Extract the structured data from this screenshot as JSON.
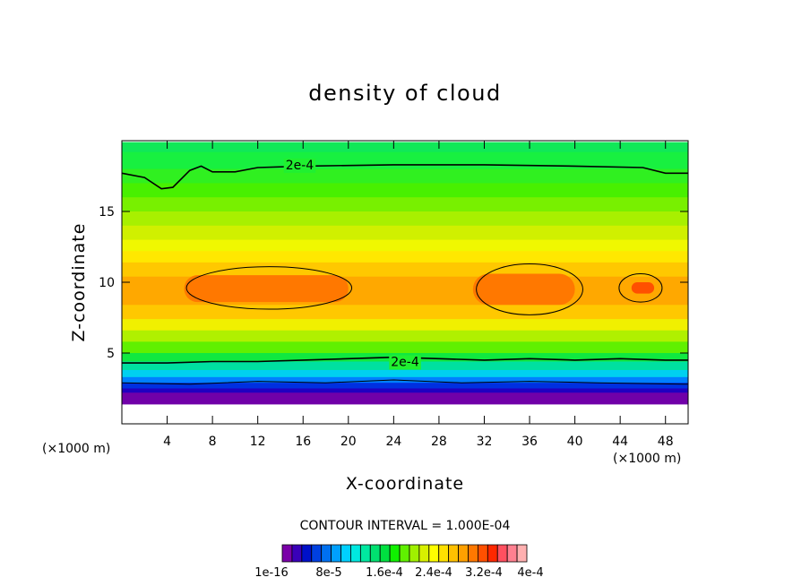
{
  "chart_data": {
    "type": "heatmap",
    "title": "density of cloud",
    "xlabel": "X-coordinate",
    "ylabel": "Z-coordinate",
    "x_unit_label": "(×1000 m)",
    "y_unit_label": "(×1000 m)",
    "xlim": [
      0,
      50
    ],
    "ylim": [
      0,
      20
    ],
    "x_ticks": [
      4,
      8,
      12,
      16,
      20,
      24,
      28,
      32,
      36,
      40,
      44,
      48
    ],
    "y_ticks": [
      5,
      10,
      15
    ],
    "contour_interval_text": "CONTOUR INTERVAL = 1.000E-04",
    "contour_labels": [
      {
        "text": "2e-4",
        "x": 15.7,
        "z": 18.3
      },
      {
        "text": "2e-4",
        "x": 25.0,
        "z": 4.4
      }
    ],
    "colorbar_labels": [
      "1e-16",
      "8e-5",
      "1.6e-4",
      "2.4e-4",
      "3.2e-4",
      "4e-4"
    ],
    "colorbar_colors": [
      "#7a00a8",
      "#3a00b8",
      "#0010c8",
      "#0040e0",
      "#0070f0",
      "#00a0ff",
      "#00d0ff",
      "#00e8e0",
      "#00e8a0",
      "#00e070",
      "#00e040",
      "#10f000",
      "#60f000",
      "#a0f000",
      "#d8f000",
      "#ffff00",
      "#ffe000",
      "#ffc000",
      "#ffa000",
      "#ff7800",
      "#ff5000",
      "#ff2800",
      "#ff5060",
      "#ff8090",
      "#ffb0b0"
    ],
    "field_rows": [
      {
        "z_top": 19.9,
        "z_bottom": 19.2,
        "color": "#10e858"
      },
      {
        "z_top": 19.2,
        "z_bottom": 18.0,
        "color": "#18f040"
      },
      {
        "z_top": 18.0,
        "z_bottom": 17.0,
        "color": "#30f020"
      },
      {
        "z_top": 17.0,
        "z_bottom": 16.0,
        "color": "#48f000"
      },
      {
        "z_top": 16.0,
        "z_bottom": 15.0,
        "color": "#78f000"
      },
      {
        "z_top": 15.0,
        "z_bottom": 14.0,
        "color": "#a8f000"
      },
      {
        "z_top": 14.0,
        "z_bottom": 13.0,
        "color": "#d0f000"
      },
      {
        "z_top": 13.0,
        "z_bottom": 12.2,
        "color": "#f0f800"
      },
      {
        "z_top": 12.2,
        "z_bottom": 11.4,
        "color": "#ffe800"
      },
      {
        "z_top": 11.4,
        "z_bottom": 10.4,
        "color": "#ffc800"
      },
      {
        "z_top": 10.4,
        "z_bottom": 8.4,
        "color": "#ffa800"
      },
      {
        "z_top": 8.4,
        "z_bottom": 7.4,
        "color": "#ffc800"
      },
      {
        "z_top": 7.4,
        "z_bottom": 6.6,
        "color": "#f0f000"
      },
      {
        "z_top": 6.6,
        "z_bottom": 5.8,
        "color": "#b0f000"
      },
      {
        "z_top": 5.8,
        "z_bottom": 5.0,
        "color": "#60f000"
      },
      {
        "z_top": 5.0,
        "z_bottom": 4.4,
        "color": "#10e840"
      },
      {
        "z_top": 4.4,
        "z_bottom": 3.8,
        "color": "#00e0a0"
      },
      {
        "z_top": 3.8,
        "z_bottom": 3.3,
        "color": "#00d0f0"
      },
      {
        "z_top": 3.3,
        "z_bottom": 2.9,
        "color": "#0080ff"
      },
      {
        "z_top": 2.9,
        "z_bottom": 2.5,
        "color": "#0030e0"
      },
      {
        "z_top": 2.5,
        "z_bottom": 2.2,
        "color": "#2000c0"
      },
      {
        "z_top": 2.2,
        "z_bottom": 1.4,
        "color": "#7000a8"
      }
    ],
    "core_regions": [
      {
        "x_start": 5.5,
        "x_end": 20,
        "z_top": 10.5,
        "z_bottom": 8.6,
        "color": "#ff7800"
      },
      {
        "x_start": 31,
        "x_end": 40,
        "z_top": 10.6,
        "z_bottom": 8.4,
        "color": "#ff7800"
      },
      {
        "x_start": 45,
        "x_end": 47,
        "z_top": 10.0,
        "z_bottom": 9.2,
        "color": "#ff5000"
      }
    ]
  }
}
